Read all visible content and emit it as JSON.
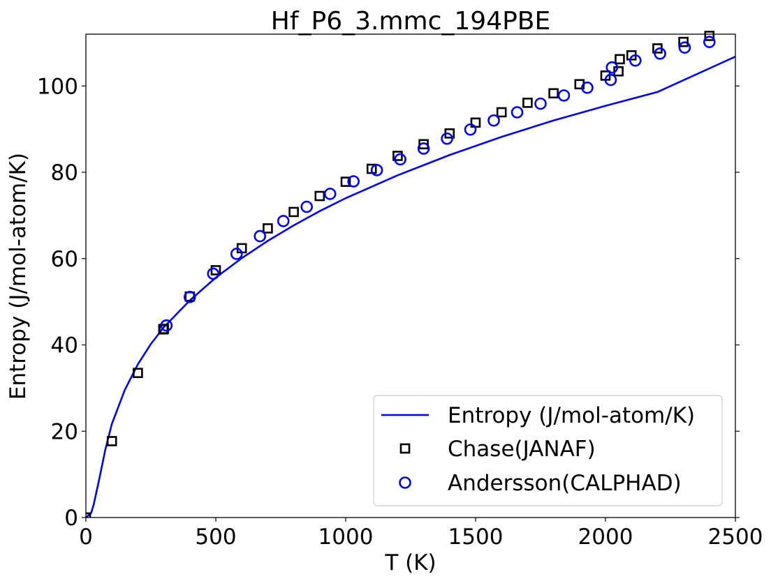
{
  "chart_data": {
    "type": "scatter",
    "title": "Hf_P6_3.mmc_194PBE",
    "xlabel": "T (K)",
    "ylabel": "Entropy (J/mol-atom/K)",
    "xlim": [
      0,
      2500
    ],
    "ylim": [
      0,
      112
    ],
    "x_ticks": [
      0,
      500,
      1000,
      1500,
      2000,
      2500
    ],
    "y_ticks": [
      0,
      20,
      40,
      60,
      80,
      100
    ],
    "x_tick_labels": [
      "0",
      "500",
      "1000",
      "1500",
      "2000",
      "2500"
    ],
    "y_tick_labels": [
      "0",
      "20",
      "40",
      "60",
      "80",
      "100"
    ],
    "grid": false,
    "legend_position": "lower-right",
    "series": [
      {
        "name": "Entropy (J/mol-atom/K)",
        "kind": "line",
        "color": "#0000ff",
        "x": [
          0,
          20,
          30,
          50,
          75,
          100,
          150,
          200,
          250,
          300,
          400,
          500,
          600,
          700,
          800,
          900,
          1000,
          1200,
          1400,
          1600,
          1800,
          2000,
          2200,
          2500
        ],
        "y": [
          0,
          1.0,
          3.0,
          8.5,
          15.8,
          21.7,
          29.6,
          35.5,
          40.2,
          44.1,
          50.3,
          55.6,
          60.1,
          64.1,
          67.7,
          71.0,
          74.0,
          79.3,
          84.0,
          88.2,
          92.0,
          95.4,
          98.6,
          106.8
        ]
      },
      {
        "name": "Chase(JANAF)",
        "kind": "square",
        "color": "#000000",
        "x": [
          0,
          100,
          200,
          298,
          300,
          400,
          500,
          600,
          700,
          800,
          900,
          1000,
          1100,
          1200,
          1300,
          1400,
          1500,
          1600,
          1700,
          1800,
          1900,
          2000,
          2050,
          2055,
          2100,
          2200,
          2300,
          2400
        ],
        "y": [
          0,
          17.7,
          33.5,
          43.6,
          43.7,
          51.2,
          57.3,
          62.4,
          67.0,
          70.8,
          74.5,
          77.8,
          80.8,
          83.8,
          86.5,
          89.0,
          91.5,
          93.9,
          96.1,
          98.3,
          100.4,
          102.4,
          103.4,
          106.2,
          107.1,
          108.7,
          110.2,
          111.6
        ]
      },
      {
        "name": "Andersson(CALPHAD)",
        "kind": "circle",
        "color": "#0000ff",
        "x": [
          310,
          400,
          490,
          580,
          670,
          760,
          850,
          940,
          1030,
          1120,
          1210,
          1300,
          1390,
          1480,
          1570,
          1660,
          1750,
          1840,
          1930,
          2020,
          2025,
          2115,
          2210,
          2305,
          2400
        ],
        "y": [
          44.5,
          51.1,
          56.5,
          61.1,
          65.2,
          68.7,
          72.0,
          75.0,
          77.9,
          80.5,
          83.0,
          85.5,
          87.8,
          89.9,
          92.0,
          93.9,
          95.9,
          97.8,
          99.6,
          101.4,
          104.3,
          105.9,
          107.5,
          108.9,
          110.2
        ]
      }
    ]
  }
}
